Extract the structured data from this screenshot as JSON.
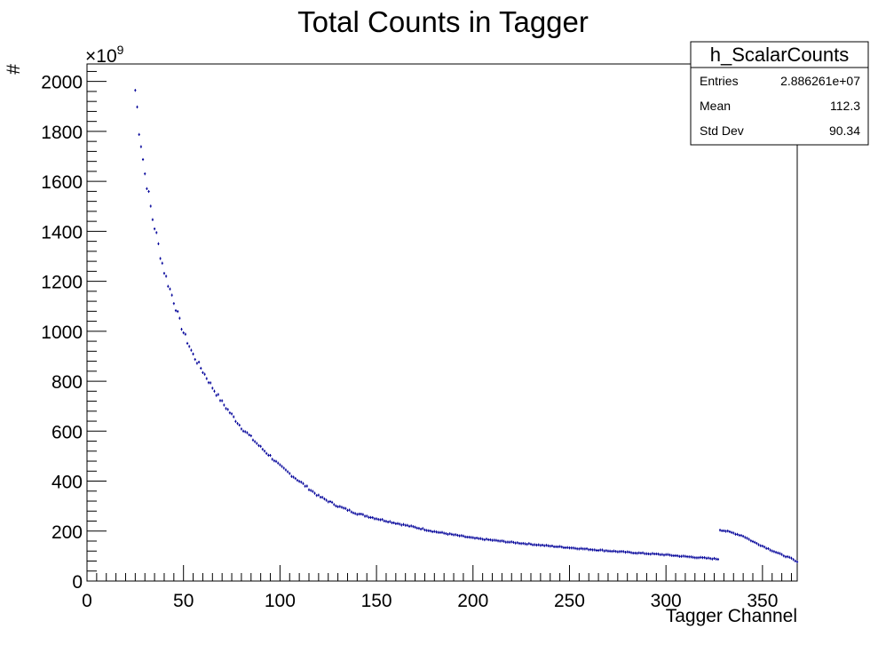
{
  "chart_data": {
    "type": "scatter",
    "title": "Total Counts in Tagger",
    "xlabel": "Tagger Channel",
    "ylabel": "#",
    "y_multiplier": "×10",
    "y_multiplier_exp": "9",
    "xlim": [
      0,
      368
    ],
    "ylim": [
      0,
      2070
    ],
    "x_ticks": [
      0,
      50,
      100,
      150,
      200,
      250,
      300,
      350
    ],
    "x_tick_labels": [
      "0",
      "50",
      "100",
      "150",
      "200",
      "250",
      "300",
      "350"
    ],
    "y_ticks": [
      0,
      200,
      400,
      600,
      800,
      1000,
      1200,
      1400,
      1600,
      1800,
      2000
    ],
    "y_tick_labels": [
      "0",
      "200",
      "400",
      "600",
      "800",
      "1000",
      "1200",
      "1400",
      "1600",
      "1800",
      "2000"
    ],
    "grid": false,
    "marker_color": "#000099",
    "series": [
      {
        "x": [
          25,
          26,
          27,
          28,
          29,
          30,
          32,
          34,
          36,
          38,
          40,
          42,
          44,
          46,
          48,
          50,
          55,
          60,
          65,
          70,
          75,
          80,
          85,
          90,
          95,
          100,
          110,
          120,
          130,
          140,
          150,
          160,
          170,
          180,
          190,
          200,
          220,
          240,
          260,
          280,
          300,
          310,
          320,
          327,
          328,
          330,
          335,
          340,
          345,
          350,
          355,
          360,
          365,
          368
        ],
        "y": [
          1965,
          1895,
          1805,
          1750,
          1690,
          1630,
          1545,
          1450,
          1385,
          1305,
          1240,
          1190,
          1145,
          1095,
          1040,
          995,
          905,
          840,
          775,
          715,
          665,
          615,
          575,
          535,
          500,
          460,
          400,
          340,
          300,
          270,
          250,
          232,
          215,
          198,
          185,
          172,
          155,
          140,
          127,
          115,
          105,
          98,
          92,
          88,
          205,
          202,
          192,
          180,
          158,
          140,
          122,
          105,
          90,
          75
        ]
      }
    ],
    "stats_box": {
      "title": "h_ScalarCounts",
      "rows": [
        {
          "label": "Entries",
          "value": "2.886261e+07"
        },
        {
          "label": "Mean",
          "value": "112.3"
        },
        {
          "label": "Std Dev",
          "value": "90.34"
        }
      ]
    }
  }
}
